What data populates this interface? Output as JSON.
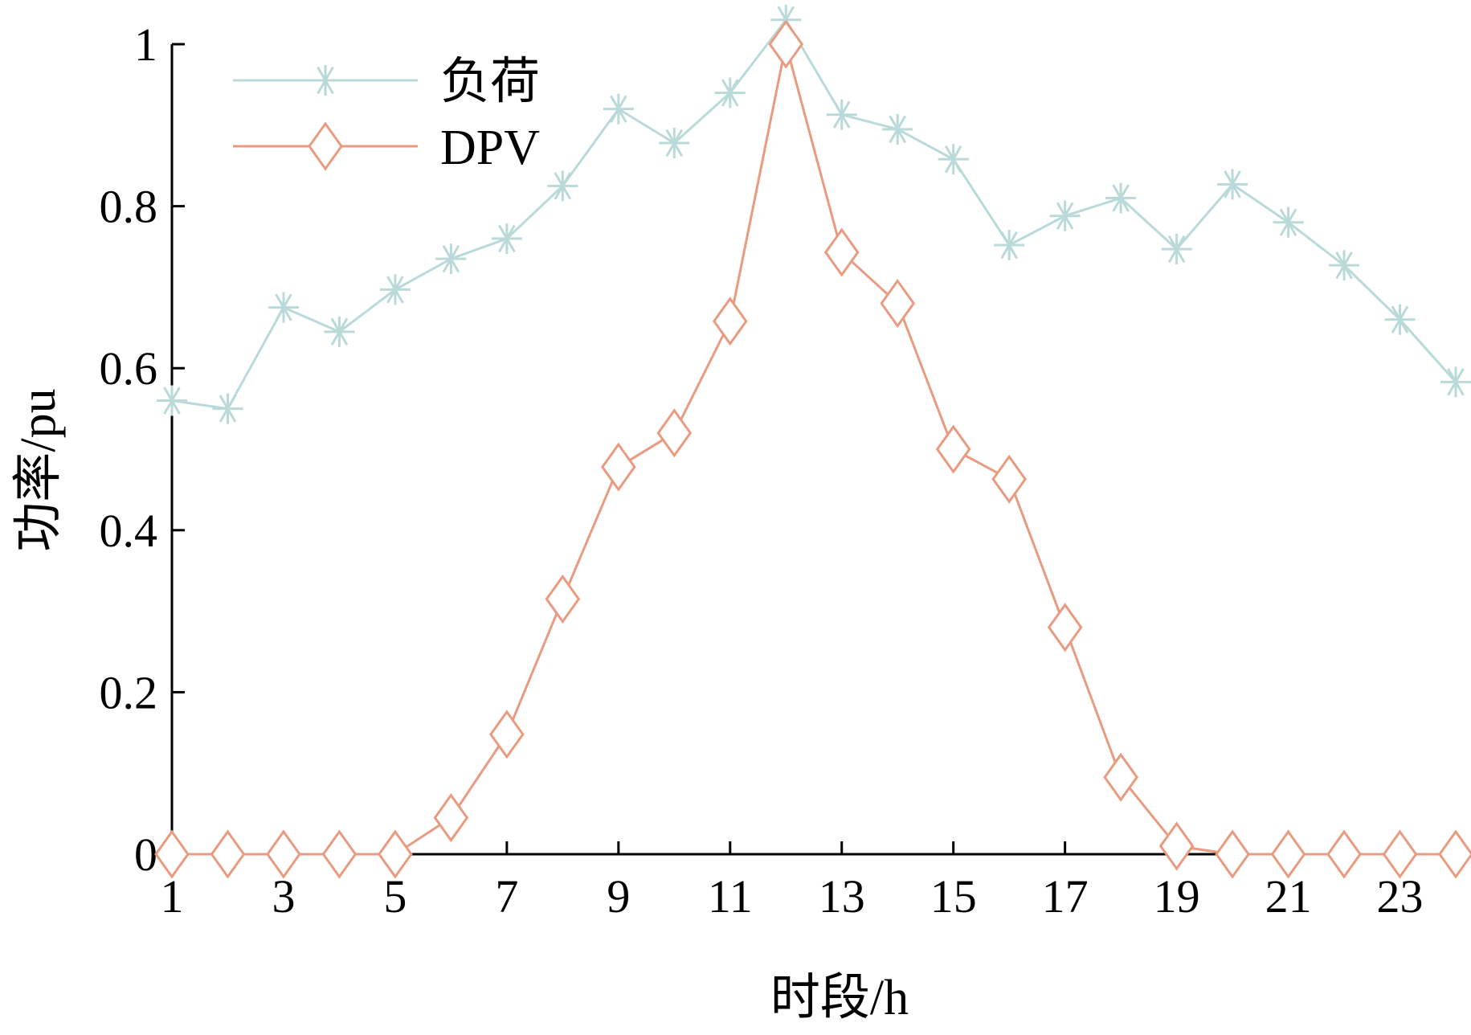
{
  "chart_data": {
    "type": "line",
    "x": [
      1,
      2,
      3,
      4,
      5,
      6,
      7,
      8,
      9,
      10,
      11,
      12,
      13,
      14,
      15,
      16,
      17,
      18,
      19,
      20,
      21,
      22,
      23,
      24
    ],
    "xticks": [
      1,
      3,
      5,
      7,
      9,
      11,
      13,
      15,
      17,
      19,
      21,
      23
    ],
    "xtick_labels": [
      "1",
      "3",
      "5",
      "7",
      "9",
      "11",
      "13",
      "15",
      "17",
      "19",
      "21",
      "23"
    ],
    "yticks": [
      0,
      0.2,
      0.4,
      0.6,
      0.8,
      1
    ],
    "ytick_labels": [
      "0",
      "0.2",
      "0.4",
      "0.6",
      "0.8",
      "1"
    ],
    "xlim": [
      1,
      24
    ],
    "ylim": [
      0,
      1
    ],
    "xlabel": "时段/h",
    "ylabel": "功率/pu",
    "grid": false,
    "legend_position": "top-left",
    "series": [
      {
        "name": "负荷",
        "marker": "asterisk",
        "color": "#b9dad9",
        "values": [
          0.56,
          0.55,
          0.675,
          0.645,
          0.697,
          0.735,
          0.76,
          0.825,
          0.92,
          0.878,
          0.94,
          1.03,
          0.913,
          0.895,
          0.858,
          0.752,
          0.788,
          0.81,
          0.747,
          0.827,
          0.78,
          0.727,
          0.66,
          0.583
        ]
      },
      {
        "name": "DPV",
        "marker": "diamond",
        "color": "#e89b80",
        "values": [
          0,
          0,
          0,
          0,
          0,
          0.045,
          0.148,
          0.315,
          0.478,
          0.52,
          0.658,
          1.0,
          0.743,
          0.68,
          0.5,
          0.463,
          0.28,
          0.095,
          0.01,
          0,
          0,
          0,
          0,
          0
        ]
      }
    ]
  }
}
